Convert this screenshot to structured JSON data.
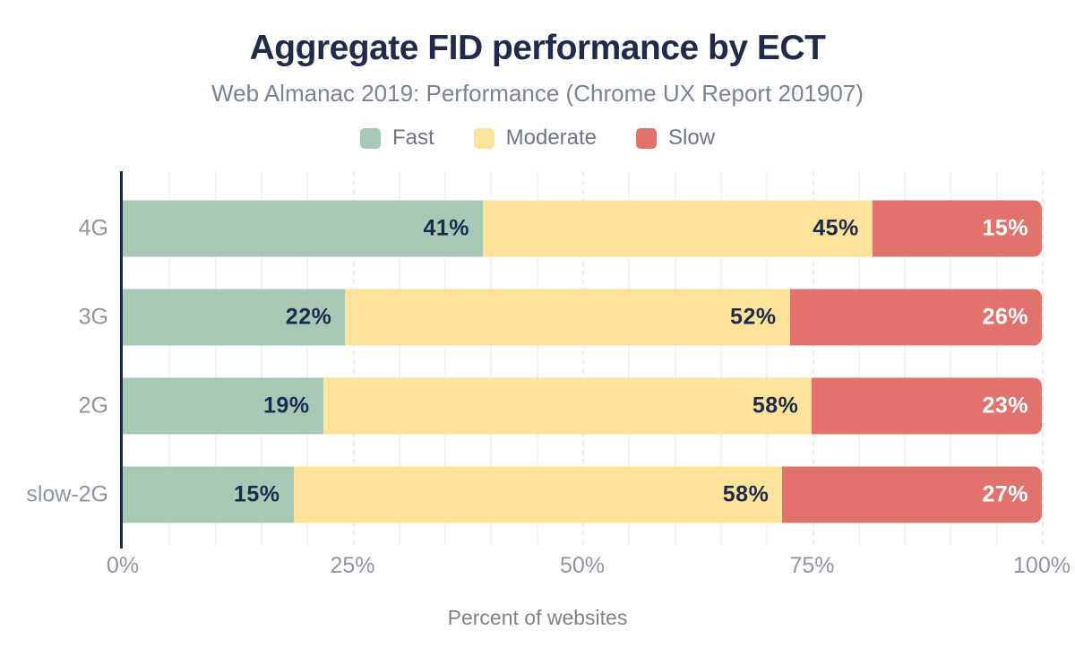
{
  "chart_data": {
    "type": "bar",
    "orientation": "horizontal",
    "stacked": true,
    "title": "Aggregate FID performance by ECT",
    "subtitle": "Web Almanac 2019: Performance (Chrome UX Report 201907)",
    "xlabel": "Percent of websites",
    "categories": [
      "4G",
      "3G",
      "2G",
      "slow-2G"
    ],
    "series": [
      {
        "name": "Fast",
        "color": "#a7c8b5",
        "label_color": "#1c2b4e",
        "values": [
          41,
          22,
          19,
          15
        ]
      },
      {
        "name": "Moderate",
        "color": "#fde399",
        "label_color": "#1c2b4e",
        "values": [
          45,
          52,
          58,
          58
        ]
      },
      {
        "name": "Slow",
        "color": "#e2736c",
        "label_color": "#ffffff",
        "values": [
          15,
          26,
          23,
          27
        ]
      }
    ],
    "value_suffix": "%",
    "x_ticks": [
      "0%",
      "25%",
      "50%",
      "75%",
      "100%"
    ],
    "x_tick_positions": [
      0,
      25,
      50,
      75,
      100
    ],
    "xlim": [
      0,
      100
    ],
    "grid": "vertical lines every 5%, dashed at 25% multiples",
    "legend_position": "top"
  },
  "colors": {
    "background": "#ffffff",
    "title": "#1f2b49",
    "subtitle": "#7b8290",
    "legend_text": "#6f7582",
    "axis_line": "#1c2b4e",
    "tick_label": "#8f959e",
    "grid_minor": "#f4f4f4",
    "grid_major_dashed": "#ececec",
    "series_fast": "#a7c8b5",
    "series_moderate": "#fde399",
    "series_slow": "#e2736c",
    "value_label_dark": "#1c2b4e",
    "value_label_light": "#ffffff"
  }
}
